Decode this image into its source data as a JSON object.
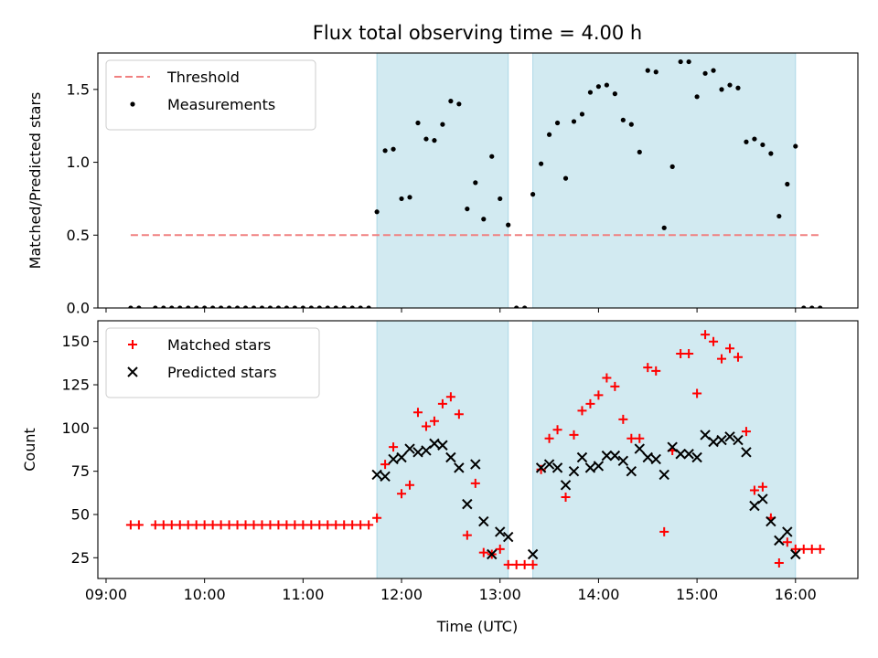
{
  "chart_data": {
    "title": "Flux total observing time = 4.00 h",
    "xlabel": "Time (UTC)",
    "xlim": [
      "08:55",
      "16:38"
    ],
    "xticks": [
      "09:00",
      "10:00",
      "11:00",
      "12:00",
      "13:00",
      "14:00",
      "15:00",
      "16:00"
    ],
    "shaded_intervals": [
      [
        "11:45",
        "13:05"
      ],
      [
        "13:20",
        "16:00"
      ]
    ],
    "shade_color": "#add8e6",
    "panels": [
      {
        "type": "scatter",
        "ylabel": "Matched/Predicted stars",
        "ylim": [
          0,
          1.75
        ],
        "yticks": [
          "0.0",
          "0.5",
          "1.0",
          "1.5"
        ],
        "legend_position": "top-left",
        "threshold": {
          "name": "Threshold",
          "y": 0.5,
          "x_range": [
            "09:15",
            "16:15"
          ],
          "color": "#f08080"
        },
        "series": [
          {
            "name": "Measurements",
            "color": "#000000",
            "marker": "dot",
            "x": [
              "09:15",
              "09:20",
              "09:30",
              "09:35",
              "09:40",
              "09:45",
              "09:50",
              "09:55",
              "10:00",
              "10:05",
              "10:10",
              "10:15",
              "10:20",
              "10:25",
              "10:30",
              "10:35",
              "10:40",
              "10:45",
              "10:50",
              "10:55",
              "11:00",
              "11:05",
              "11:10",
              "11:15",
              "11:20",
              "11:25",
              "11:30",
              "11:35",
              "11:40",
              "11:45",
              "11:50",
              "11:55",
              "12:00",
              "12:05",
              "12:10",
              "12:15",
              "12:20",
              "12:25",
              "12:30",
              "12:35",
              "12:40",
              "12:45",
              "12:50",
              "12:55",
              "13:00",
              "13:05",
              "13:10",
              "13:15",
              "13:20",
              "13:25",
              "13:30",
              "13:35",
              "13:40",
              "13:45",
              "13:50",
              "13:55",
              "14:00",
              "14:05",
              "14:10",
              "14:15",
              "14:20",
              "14:25",
              "14:30",
              "14:35",
              "14:40",
              "14:45",
              "14:50",
              "14:55",
              "15:00",
              "15:05",
              "15:10",
              "15:15",
              "15:20",
              "15:25",
              "15:30",
              "15:35",
              "15:40",
              "15:45",
              "15:50",
              "15:55",
              "16:00",
              "16:05",
              "16:10",
              "16:15"
            ],
            "y": [
              0,
              0,
              0,
              0,
              0,
              0,
              0,
              0,
              0,
              0,
              0,
              0,
              0,
              0,
              0,
              0,
              0,
              0,
              0,
              0,
              0,
              0,
              0,
              0,
              0,
              0,
              0,
              0,
              0,
              0.66,
              1.08,
              1.09,
              0.75,
              0.76,
              1.27,
              1.16,
              1.15,
              1.26,
              1.42,
              1.4,
              0.68,
              0.86,
              0.61,
              1.04,
              0.75,
              0.57,
              0,
              0,
              0.78,
              0.99,
              1.19,
              1.27,
              0.89,
              1.28,
              1.33,
              1.48,
              1.52,
              1.53,
              1.47,
              1.29,
              1.26,
              1.07,
              1.63,
              1.62,
              0.55,
              0.97,
              1.69,
              1.69,
              1.45,
              1.61,
              1.63,
              1.5,
              1.53,
              1.51,
              1.14,
              1.16,
              1.12,
              1.06,
              0.63,
              0.85,
              1.11,
              0,
              0,
              0
            ]
          }
        ]
      },
      {
        "type": "scatter",
        "ylabel": "Count",
        "ylim": [
          13,
          162
        ],
        "yticks": [
          "25",
          "50",
          "75",
          "100",
          "125",
          "150"
        ],
        "legend_position": "top-left",
        "series": [
          {
            "name": "Matched stars",
            "color": "#ff0000",
            "marker": "plus",
            "x": [
              "09:15",
              "09:20",
              "09:30",
              "09:35",
              "09:40",
              "09:45",
              "09:50",
              "09:55",
              "10:00",
              "10:05",
              "10:10",
              "10:15",
              "10:20",
              "10:25",
              "10:30",
              "10:35",
              "10:40",
              "10:45",
              "10:50",
              "10:55",
              "11:00",
              "11:05",
              "11:10",
              "11:15",
              "11:20",
              "11:25",
              "11:30",
              "11:35",
              "11:40",
              "11:45",
              "11:50",
              "11:55",
              "12:00",
              "12:05",
              "12:10",
              "12:15",
              "12:20",
              "12:25",
              "12:30",
              "12:35",
              "12:40",
              "12:45",
              "12:50",
              "12:55",
              "13:00",
              "13:05",
              "13:10",
              "13:15",
              "13:20",
              "13:25",
              "13:30",
              "13:35",
              "13:40",
              "13:45",
              "13:50",
              "13:55",
              "14:00",
              "14:05",
              "14:10",
              "14:15",
              "14:20",
              "14:25",
              "14:30",
              "14:35",
              "14:40",
              "14:45",
              "14:50",
              "14:55",
              "15:00",
              "15:05",
              "15:10",
              "15:15",
              "15:20",
              "15:25",
              "15:30",
              "15:35",
              "15:40",
              "15:45",
              "15:50",
              "15:55",
              "16:00",
              "16:05",
              "16:10",
              "16:15"
            ],
            "y": [
              44,
              44,
              44,
              44,
              44,
              44,
              44,
              44,
              44,
              44,
              44,
              44,
              44,
              44,
              44,
              44,
              44,
              44,
              44,
              44,
              44,
              44,
              44,
              44,
              44,
              44,
              44,
              44,
              44,
              48,
              79,
              89,
              62,
              67,
              109,
              101,
              104,
              114,
              118,
              108,
              38,
              68,
              28,
              27,
              30,
              21,
              21,
              21,
              21,
              76,
              94,
              99,
              60,
              96,
              110,
              114,
              119,
              129,
              124,
              105,
              94,
              94,
              135,
              133,
              40,
              87,
              143,
              143,
              120,
              154,
              150,
              140,
              146,
              141,
              98,
              64,
              66,
              48,
              22,
              34,
              30,
              30,
              30,
              30
            ]
          },
          {
            "name": "Predicted stars",
            "color": "#000000",
            "marker": "x",
            "x": [
              "11:45",
              "11:50",
              "11:55",
              "12:00",
              "12:05",
              "12:10",
              "12:15",
              "12:20",
              "12:25",
              "12:30",
              "12:35",
              "12:40",
              "12:45",
              "12:50",
              "12:55",
              "13:00",
              "13:05",
              "13:20",
              "13:25",
              "13:30",
              "13:35",
              "13:40",
              "13:45",
              "13:50",
              "13:55",
              "14:00",
              "14:05",
              "14:10",
              "14:15",
              "14:20",
              "14:25",
              "14:30",
              "14:35",
              "14:40",
              "14:45",
              "14:50",
              "14:55",
              "15:00",
              "15:05",
              "15:10",
              "15:15",
              "15:20",
              "15:25",
              "15:30",
              "15:35",
              "15:40",
              "15:45",
              "15:50",
              "15:55",
              "16:00"
            ],
            "y": [
              73,
              72,
              82,
              83,
              88,
              86,
              87,
              91,
              90,
              83,
              77,
              56,
              79,
              46,
              27,
              40,
              37,
              27,
              77,
              79,
              77,
              67,
              75,
              83,
              77,
              78,
              84,
              84,
              81,
              75,
              88,
              83,
              82,
              73,
              89,
              85,
              85,
              83,
              96,
              92,
              93,
              95,
              93,
              86,
              55,
              59,
              46,
              35,
              40,
              27
            ]
          }
        ]
      }
    ]
  }
}
